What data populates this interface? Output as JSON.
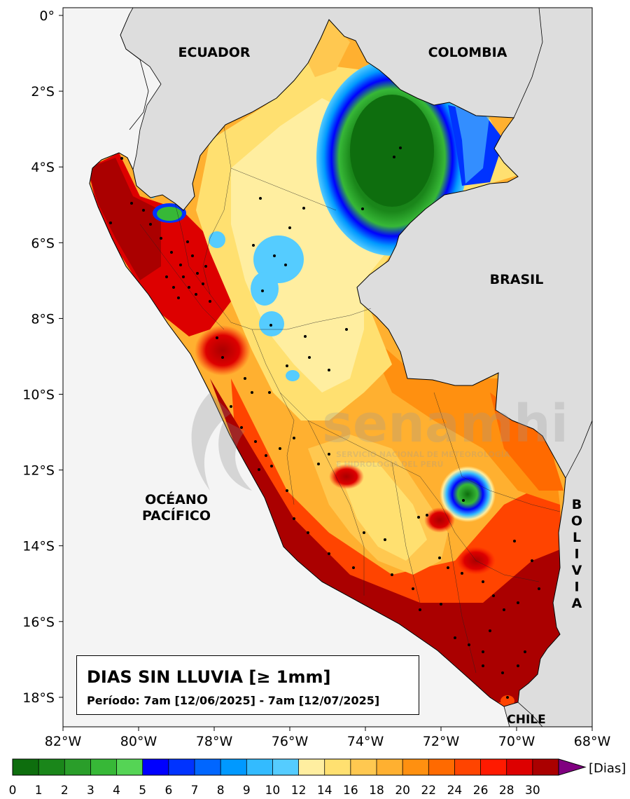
{
  "map": {
    "title": "DIAS SIN LLUVIA [≥ 1mm]",
    "period": "Período: 7am [12/06/2025] - 7am [12/07/2025]",
    "country_labels": {
      "ecuador": "ECUADOR",
      "colombia": "COLOMBIA",
      "brasil": "BRASIL",
      "chile": "CHILE",
      "bolivia": [
        "B",
        "O",
        "L",
        "I",
        "V",
        "I",
        "A"
      ],
      "ocean_line1": "OCÉANO",
      "ocean_line2": "PACÍFICO"
    },
    "lat_ticks": [
      "0°",
      "2°S",
      "4°S",
      "6°S",
      "8°S",
      "10°S",
      "12°S",
      "14°S",
      "16°S",
      "18°S"
    ],
    "lon_ticks": [
      "82°W",
      "80°W",
      "78°W",
      "76°W",
      "74°W",
      "72°W",
      "70°W",
      "68°W"
    ],
    "watermark_lines": [
      "senamhi",
      "SERVICIO NACIONAL DE METEOROLOGÍA",
      "E HIDROLOGÍA DEL PERÚ"
    ]
  },
  "colorbar": {
    "unit": "[Dias]",
    "labels": [
      "0",
      "1",
      "2",
      "3",
      "4",
      "5",
      "6",
      "7",
      "8",
      "9",
      "10",
      "12",
      "14",
      "16",
      "18",
      "20",
      "22",
      "24",
      "26",
      "28",
      "30"
    ],
    "colors": [
      "#0e6e0e",
      "#1a861a",
      "#2a9e2a",
      "#37b837",
      "#55d455",
      "#0000ff",
      "#0033ff",
      "#0066ff",
      "#0099ff",
      "#33bbff",
      "#55ccff",
      "#ffeea0",
      "#ffe070",
      "#ffc850",
      "#ffb030",
      "#ff9010",
      "#ff6a00",
      "#ff4400",
      "#ff1a00",
      "#dd0000",
      "#aa0000"
    ],
    "extend_color": "#800080"
  }
}
